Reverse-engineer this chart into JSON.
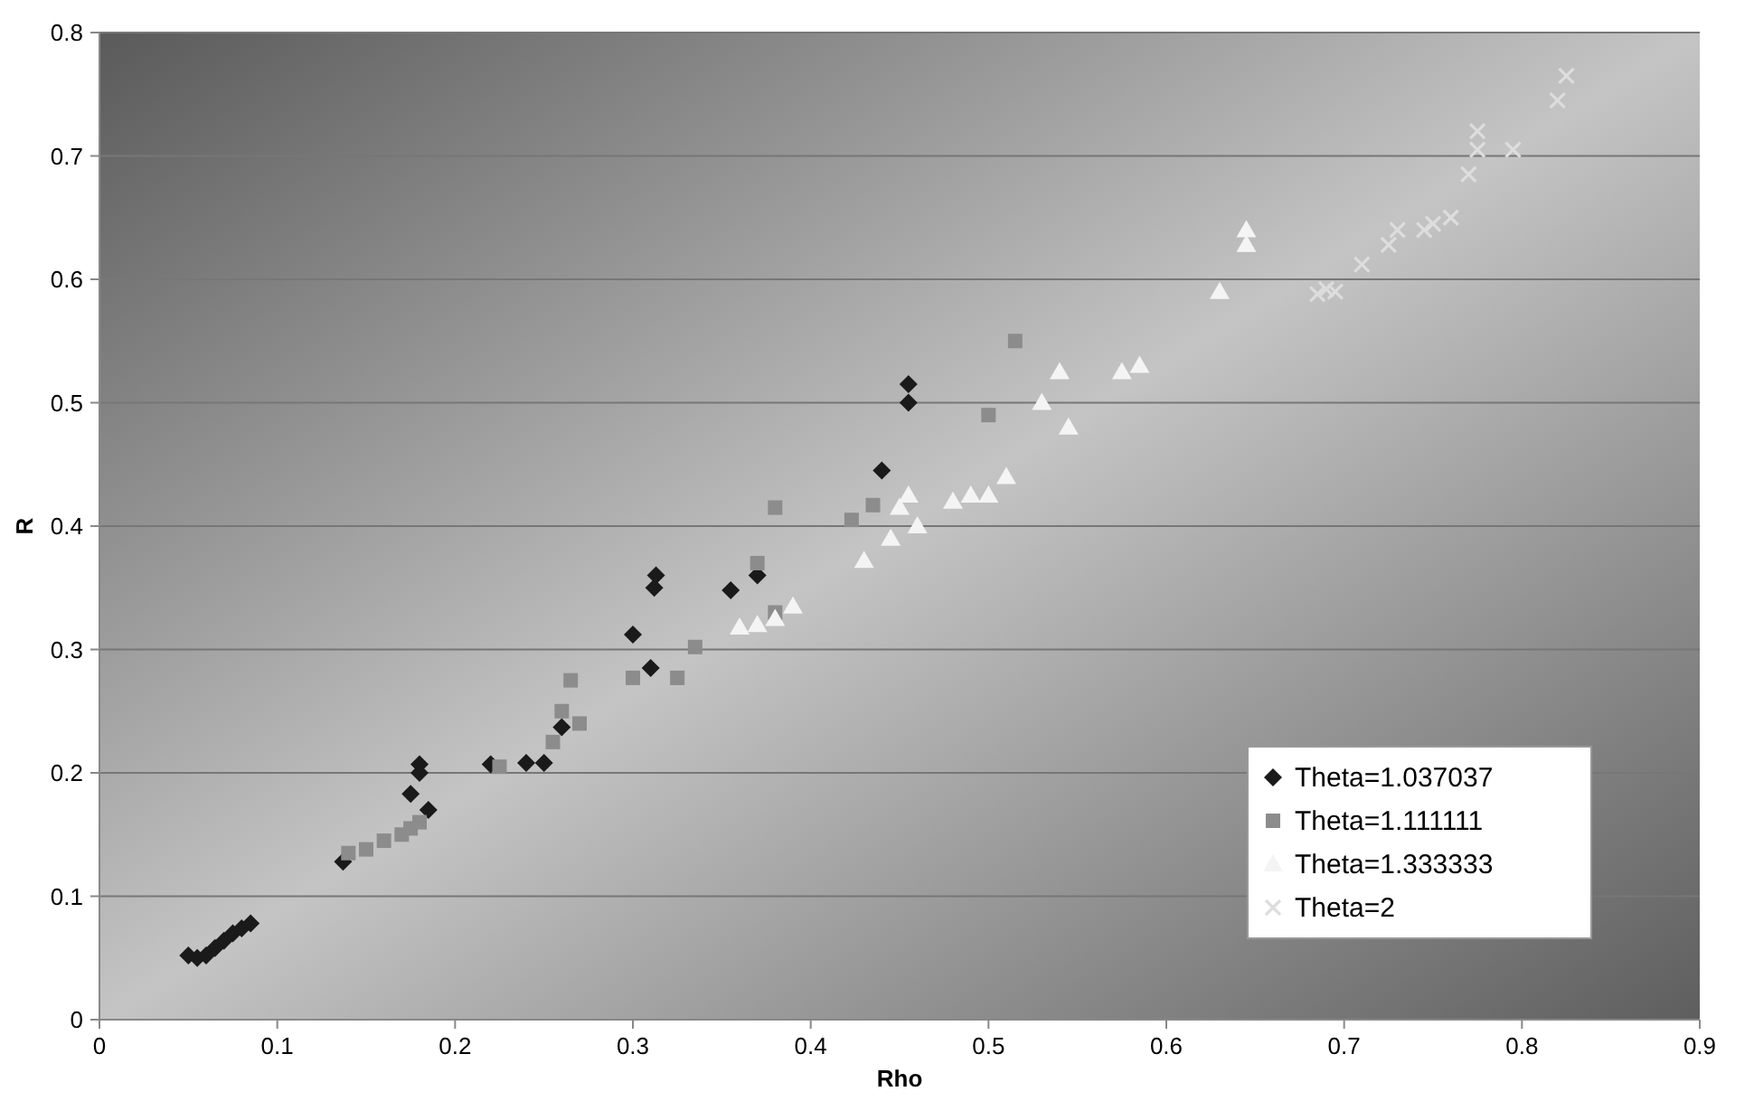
{
  "chart_data": {
    "type": "scatter",
    "xlabel": "Rho",
    "ylabel": "R",
    "xlim": [
      0,
      0.9
    ],
    "xticks": [
      0,
      0.1,
      0.2,
      0.3,
      0.4,
      0.5,
      0.6,
      0.7,
      0.8,
      0.9
    ],
    "ylim": [
      0,
      0.8
    ],
    "yticks": [
      0,
      0.1,
      0.2,
      0.3,
      0.4,
      0.5,
      0.6,
      0.7,
      0.8
    ],
    "grid": "y",
    "legend": "bottom right",
    "series": [
      {
        "name": "Theta=1.037037",
        "color": "#1a1a1a",
        "marker": "diamond",
        "x": [
          0.05,
          0.055,
          0.06,
          0.065,
          0.07,
          0.075,
          0.08,
          0.085,
          0.137,
          0.175,
          0.18,
          0.18,
          0.185,
          0.22,
          0.24,
          0.25,
          0.26,
          0.3,
          0.31,
          0.312,
          0.313,
          0.355,
          0.37,
          0.44,
          0.455,
          0.455
        ],
        "values": [
          0.052,
          0.05,
          0.052,
          0.058,
          0.064,
          0.07,
          0.074,
          0.078,
          0.128,
          0.183,
          0.2,
          0.207,
          0.17,
          0.207,
          0.208,
          0.208,
          0.237,
          0.312,
          0.285,
          0.35,
          0.36,
          0.348,
          0.36,
          0.445,
          0.5,
          0.515
        ]
      },
      {
        "name": "Theta=1.111111",
        "color": "#8c8c8c",
        "marker": "square",
        "x": [
          0.14,
          0.15,
          0.16,
          0.17,
          0.175,
          0.18,
          0.225,
          0.255,
          0.26,
          0.265,
          0.27,
          0.3,
          0.325,
          0.335,
          0.37,
          0.38,
          0.38,
          0.423,
          0.435,
          0.5,
          0.515
        ],
        "values": [
          0.135,
          0.138,
          0.145,
          0.15,
          0.155,
          0.16,
          0.205,
          0.225,
          0.25,
          0.275,
          0.24,
          0.277,
          0.277,
          0.302,
          0.37,
          0.33,
          0.415,
          0.405,
          0.417,
          0.49,
          0.55
        ]
      },
      {
        "name": "Theta=1.333333",
        "color": "#f4f4f4",
        "marker": "triangle",
        "x": [
          0.36,
          0.37,
          0.38,
          0.39,
          0.43,
          0.445,
          0.45,
          0.455,
          0.46,
          0.48,
          0.49,
          0.5,
          0.51,
          0.53,
          0.54,
          0.545,
          0.575,
          0.585,
          0.63,
          0.645,
          0.645
        ],
        "values": [
          0.318,
          0.32,
          0.325,
          0.335,
          0.372,
          0.39,
          0.415,
          0.425,
          0.4,
          0.42,
          0.425,
          0.425,
          0.44,
          0.5,
          0.525,
          0.48,
          0.525,
          0.53,
          0.59,
          0.628,
          0.64
        ]
      },
      {
        "name": "Theta=2",
        "color": "#dddddd",
        "marker": "cross",
        "x": [
          0.685,
          0.69,
          0.695,
          0.71,
          0.725,
          0.73,
          0.745,
          0.75,
          0.76,
          0.77,
          0.775,
          0.775,
          0.795,
          0.82,
          0.825
        ],
        "values": [
          0.588,
          0.592,
          0.59,
          0.612,
          0.628,
          0.64,
          0.64,
          0.645,
          0.65,
          0.685,
          0.705,
          0.72,
          0.705,
          0.745,
          0.765
        ]
      }
    ]
  }
}
